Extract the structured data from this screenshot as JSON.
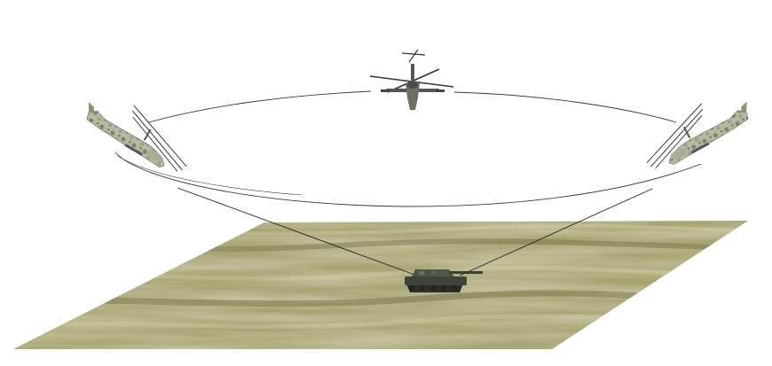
{
  "scene": {
    "background": "#ffffff",
    "orbit_color": "#3a3a3a",
    "ground_colors": [
      "#8e8a5a",
      "#b3b07d",
      "#6f6c3e",
      "#c9c39a"
    ],
    "objects": [
      {
        "kind": "helicopter",
        "role": "top"
      },
      {
        "kind": "helicopter",
        "role": "left"
      },
      {
        "kind": "helicopter",
        "role": "right"
      },
      {
        "kind": "tank",
        "role": "target"
      }
    ]
  }
}
